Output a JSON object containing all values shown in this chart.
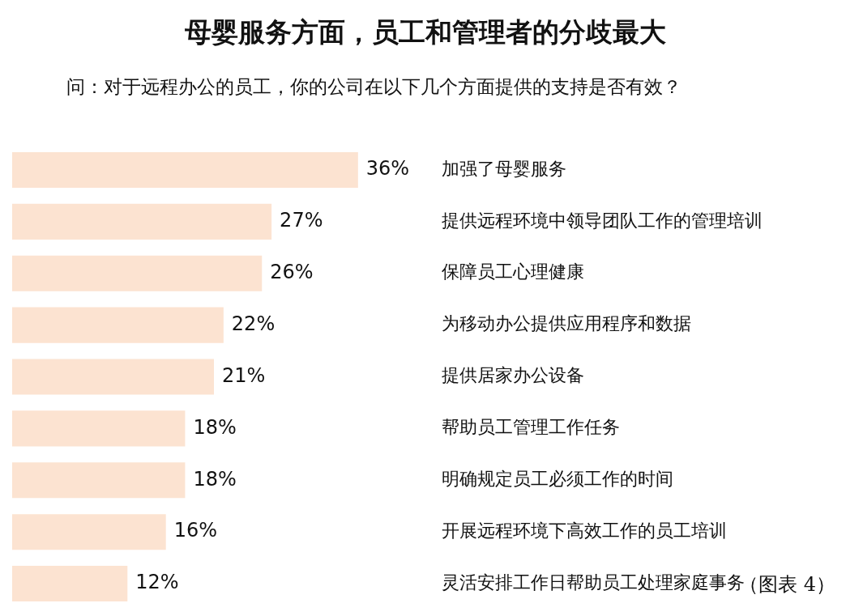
{
  "chart_data": {
    "type": "bar",
    "orientation": "horizontal",
    "title": "母婴服务方面，员工和管理者的分歧最大",
    "subtitle": "问：对于远程办公的员工，你的公司在以下几个方面提供的支持是否有效？",
    "categories": [
      "加强了母婴服务",
      "提供远程环境中领导团队工作的管理培训",
      "保障员工心理健康",
      "为移动办公提供应用程序和数据",
      "提供居家办公设备",
      "帮助员工管理工作任务",
      "明确规定员工必须工作的时间",
      "开展远程环境下高效工作的员工培训",
      "灵活安排工作日帮助员工处理家庭事务"
    ],
    "values": [
      36,
      27,
      26,
      22,
      21,
      18,
      18,
      16,
      12
    ],
    "value_labels": [
      "36%",
      "27%",
      "26%",
      "22%",
      "21%",
      "18%",
      "18%",
      "16%",
      "12%"
    ],
    "color": "#fce3d1",
    "tick_labels": false,
    "annotations": [
      "（图表 4）"
    ]
  }
}
